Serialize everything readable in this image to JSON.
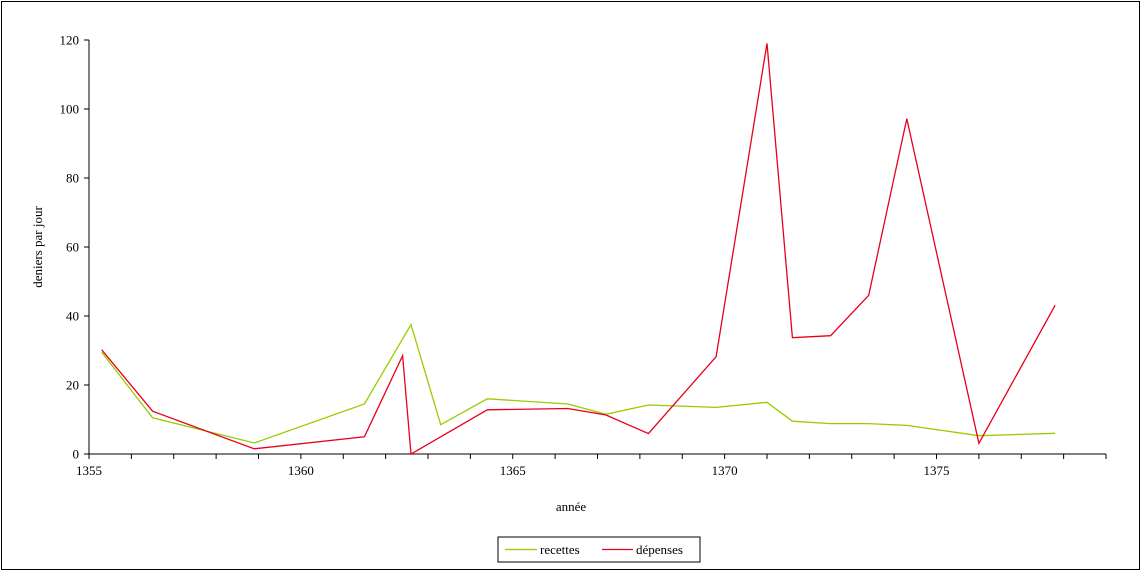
{
  "chart_data": {
    "type": "line",
    "title": "",
    "xlabel": "année",
    "ylabel": "deniers par jour",
    "xlim": [
      1355,
      1379
    ],
    "ylim": [
      0,
      120
    ],
    "xticks": [
      1355,
      1360,
      1365,
      1370,
      1375
    ],
    "yticks": [
      0,
      20,
      40,
      60,
      80,
      100,
      120
    ],
    "grid": false,
    "legend_position": "bottom-center",
    "series": [
      {
        "name": "recettes",
        "color": "#99cc00",
        "points": [
          [
            1355.3,
            29.5
          ],
          [
            1356.5,
            10.5
          ],
          [
            1358.9,
            3.2
          ],
          [
            1361.5,
            14.5
          ],
          [
            1362.6,
            37.5
          ],
          [
            1363.3,
            8.5
          ],
          [
            1364.4,
            16
          ],
          [
            1366.3,
            14.5
          ],
          [
            1367.2,
            11.5
          ],
          [
            1368.2,
            14.2
          ],
          [
            1369.8,
            13.5
          ],
          [
            1371,
            15
          ],
          [
            1371.6,
            9.5
          ],
          [
            1372.5,
            8.8
          ],
          [
            1373.4,
            8.8
          ],
          [
            1374.3,
            8.3
          ],
          [
            1376,
            5.3
          ],
          [
            1377.8,
            6
          ]
        ]
      },
      {
        "name": "dépenses",
        "color": "#e8001c",
        "points": [
          [
            1355.3,
            30.2
          ],
          [
            1356.5,
            12.4
          ],
          [
            1358.9,
            1.5
          ],
          [
            1361.5,
            5
          ],
          [
            1362.4,
            28.5
          ],
          [
            1362.6,
            0
          ],
          [
            1364.4,
            12.8
          ],
          [
            1366.3,
            13.2
          ],
          [
            1367.2,
            11.3
          ],
          [
            1368.2,
            5.9
          ],
          [
            1369.8,
            28.2
          ],
          [
            1371,
            119
          ],
          [
            1371.6,
            33.7
          ],
          [
            1372.5,
            34.3
          ],
          [
            1373.4,
            46
          ],
          [
            1374.3,
            97.2
          ],
          [
            1376,
            3.1
          ],
          [
            1377.8,
            43.1
          ]
        ]
      }
    ]
  }
}
